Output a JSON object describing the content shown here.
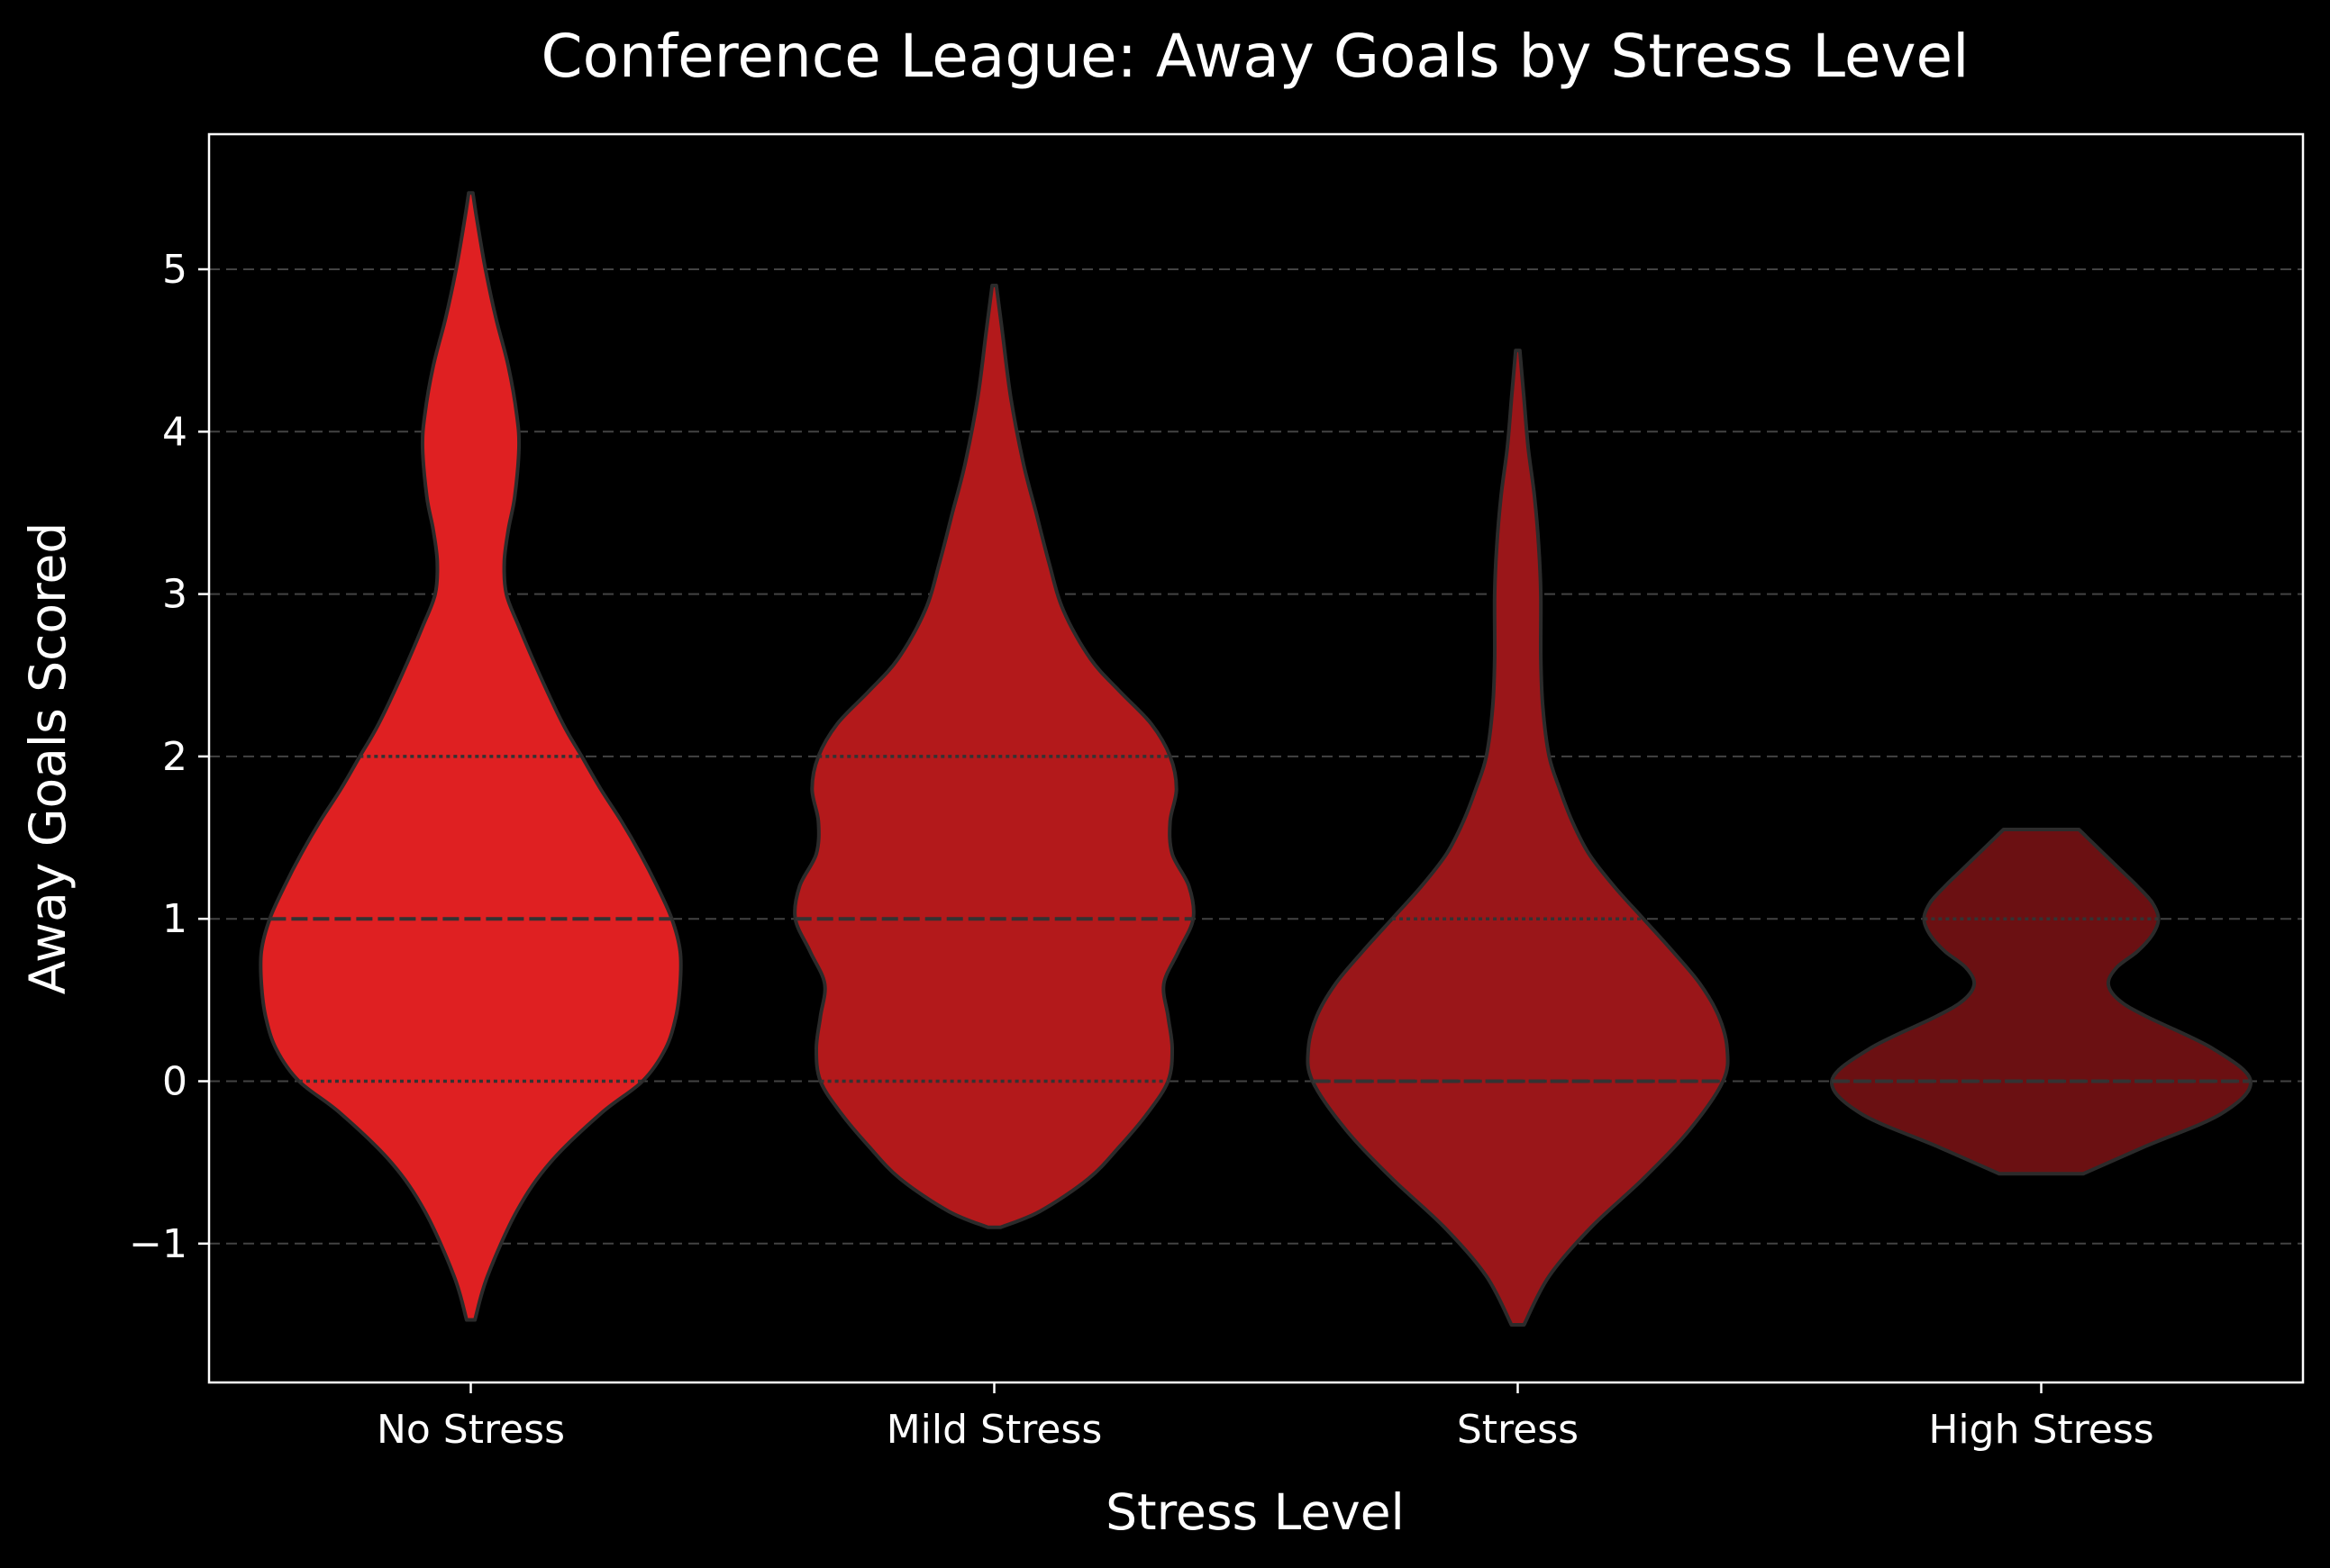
{
  "chart_data": {
    "type": "violin",
    "title": "Conference League: Away Goals by Stress Level",
    "xlabel": "Stress Level",
    "ylabel": "Away Goals Scored",
    "ylim": [
      -1.85,
      5.83
    ],
    "yticks": [
      -1,
      0,
      1,
      2,
      3,
      4,
      5
    ],
    "ytick_labels": [
      "−1",
      "0",
      "1",
      "2",
      "3",
      "4",
      "5"
    ],
    "grid": {
      "axis": "y",
      "style": "dashed"
    },
    "categories": [
      "No Stress",
      "Mild Stress",
      "Stress",
      "High Stress"
    ],
    "series": [
      {
        "category": "No Stress",
        "color": "#df2022",
        "min": -1.47,
        "max": 5.47,
        "quartiles": [
          0,
          1,
          2
        ],
        "median": 1,
        "density": [
          [
            -1.47,
            0.02
          ],
          [
            -1.2,
            0.08
          ],
          [
            -0.8,
            0.22
          ],
          [
            -0.5,
            0.38
          ],
          [
            -0.2,
            0.62
          ],
          [
            0.0,
            0.82
          ],
          [
            0.2,
            0.93
          ],
          [
            0.4,
            0.98
          ],
          [
            0.6,
            1.0
          ],
          [
            0.8,
            1.0
          ],
          [
            1.0,
            0.96
          ],
          [
            1.2,
            0.89
          ],
          [
            1.4,
            0.81
          ],
          [
            1.6,
            0.72
          ],
          [
            1.8,
            0.62
          ],
          [
            2.0,
            0.53
          ],
          [
            2.2,
            0.44
          ],
          [
            2.5,
            0.33
          ],
          [
            2.8,
            0.23
          ],
          [
            3.0,
            0.17
          ],
          [
            3.2,
            0.16
          ],
          [
            3.4,
            0.18
          ],
          [
            3.6,
            0.21
          ],
          [
            3.9,
            0.23
          ],
          [
            4.1,
            0.22
          ],
          [
            4.4,
            0.18
          ],
          [
            4.7,
            0.12
          ],
          [
            5.0,
            0.07
          ],
          [
            5.3,
            0.03
          ],
          [
            5.47,
            0.01
          ]
        ]
      },
      {
        "category": "Mild Stress",
        "color": "#b3191b",
        "min": -0.9,
        "max": 4.9,
        "quartiles": [
          0,
          1,
          2
        ],
        "median": 1,
        "density": [
          [
            -0.9,
            0.03
          ],
          [
            -0.8,
            0.22
          ],
          [
            -0.6,
            0.45
          ],
          [
            -0.4,
            0.6
          ],
          [
            -0.2,
            0.73
          ],
          [
            0.0,
            0.83
          ],
          [
            0.2,
            0.85
          ],
          [
            0.4,
            0.83
          ],
          [
            0.6,
            0.81
          ],
          [
            0.8,
            0.88
          ],
          [
            1.0,
            0.95
          ],
          [
            1.2,
            0.93
          ],
          [
            1.4,
            0.85
          ],
          [
            1.6,
            0.84
          ],
          [
            1.8,
            0.87
          ],
          [
            2.0,
            0.84
          ],
          [
            2.2,
            0.75
          ],
          [
            2.4,
            0.6
          ],
          [
            2.6,
            0.46
          ],
          [
            2.9,
            0.33
          ],
          [
            3.2,
            0.26
          ],
          [
            3.5,
            0.2
          ],
          [
            3.8,
            0.14
          ],
          [
            4.2,
            0.08
          ],
          [
            4.6,
            0.04
          ],
          [
            4.9,
            0.01
          ]
        ]
      },
      {
        "category": "Stress",
        "color": "#9a1619",
        "min": -1.5,
        "max": 4.5,
        "quartiles": [
          0,
          0,
          1
        ],
        "median": 0,
        "density": [
          [
            -1.5,
            0.03
          ],
          [
            -1.2,
            0.15
          ],
          [
            -0.9,
            0.35
          ],
          [
            -0.6,
            0.6
          ],
          [
            -0.3,
            0.82
          ],
          [
            0.0,
            0.98
          ],
          [
            0.2,
            1.0
          ],
          [
            0.4,
            0.96
          ],
          [
            0.6,
            0.87
          ],
          [
            0.8,
            0.74
          ],
          [
            1.0,
            0.6
          ],
          [
            1.2,
            0.46
          ],
          [
            1.4,
            0.34
          ],
          [
            1.6,
            0.26
          ],
          [
            1.8,
            0.2
          ],
          [
            2.0,
            0.15
          ],
          [
            2.3,
            0.12
          ],
          [
            2.6,
            0.11
          ],
          [
            3.0,
            0.11
          ],
          [
            3.3,
            0.1
          ],
          [
            3.6,
            0.08
          ],
          [
            3.9,
            0.05
          ],
          [
            4.2,
            0.03
          ],
          [
            4.5,
            0.01
          ]
        ]
      },
      {
        "category": "High Stress",
        "color": "#6b1012",
        "min": -0.57,
        "max": 1.55,
        "quartiles": [
          0,
          0,
          1
        ],
        "median": 0,
        "density": [
          [
            -0.57,
            0.2
          ],
          [
            -0.4,
            0.5
          ],
          [
            -0.2,
            0.86
          ],
          [
            0.0,
            1.0
          ],
          [
            0.2,
            0.82
          ],
          [
            0.4,
            0.5
          ],
          [
            0.5,
            0.37
          ],
          [
            0.6,
            0.32
          ],
          [
            0.7,
            0.36
          ],
          [
            0.8,
            0.46
          ],
          [
            0.9,
            0.53
          ],
          [
            1.0,
            0.56
          ],
          [
            1.1,
            0.53
          ],
          [
            1.2,
            0.46
          ],
          [
            1.3,
            0.38
          ],
          [
            1.4,
            0.3
          ],
          [
            1.5,
            0.22
          ],
          [
            1.55,
            0.18
          ]
        ]
      }
    ],
    "colors": {
      "background": "#000000",
      "axes": "#ffffff",
      "grid": "#5a5a5a",
      "violin_edge": "#2b2b2b",
      "inner_lines": "#333333"
    }
  }
}
